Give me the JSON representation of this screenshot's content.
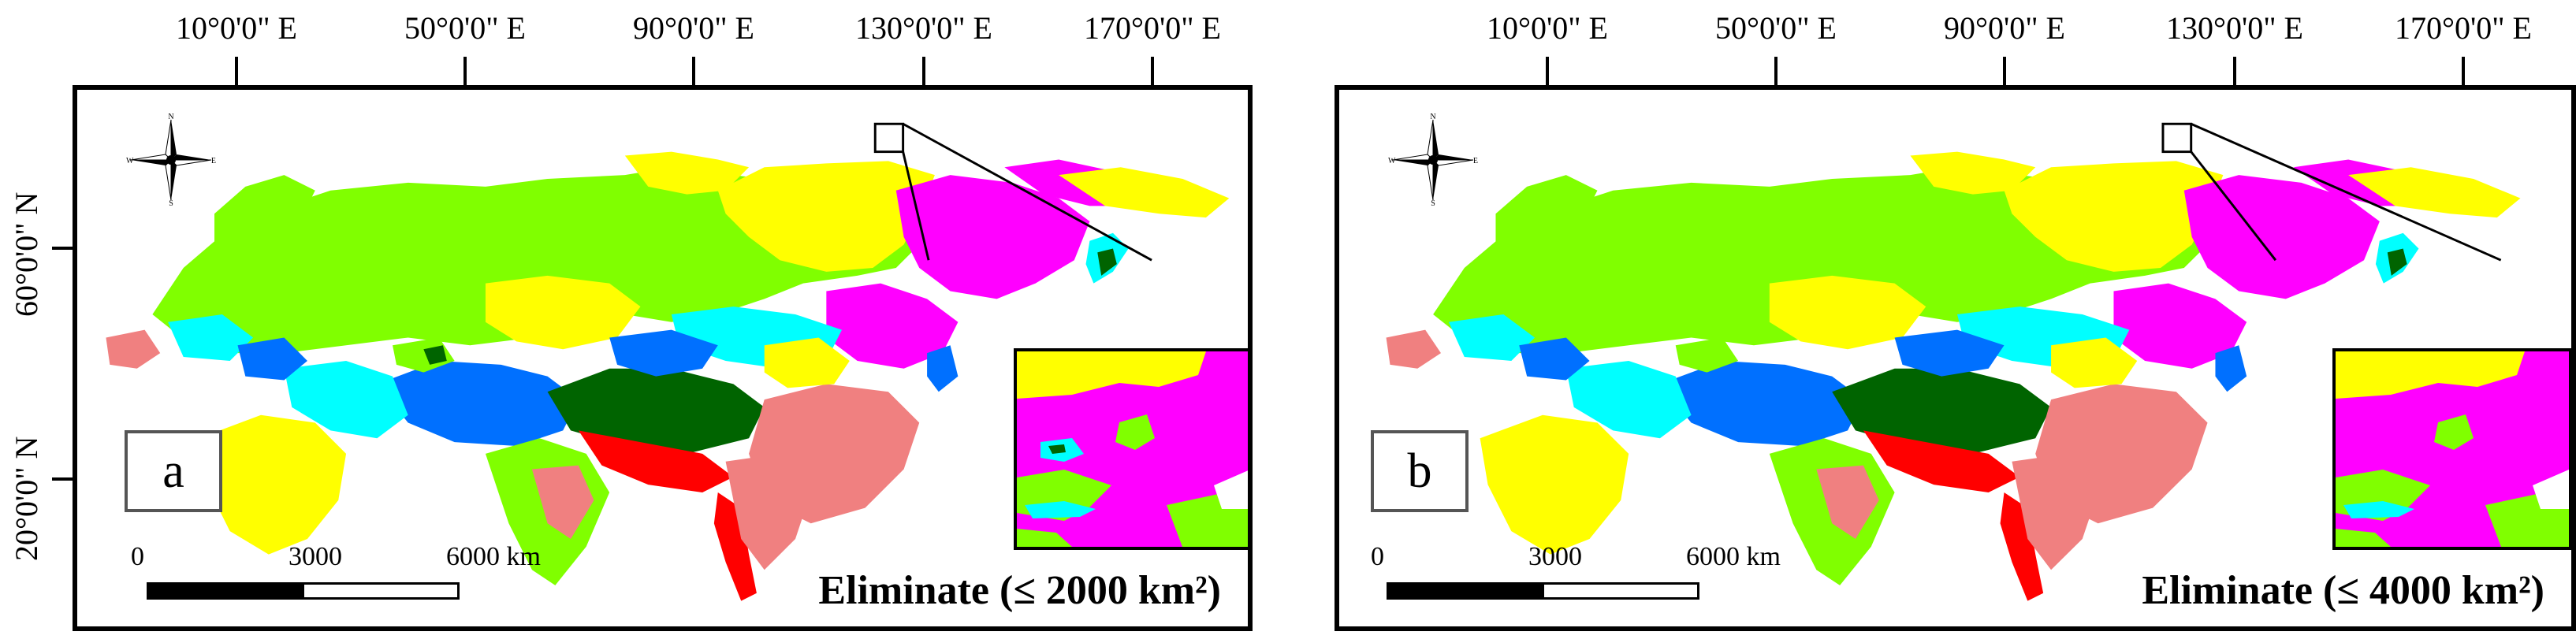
{
  "longitude_labels": [
    "10°0'0\" E",
    "50°0'0\" E",
    "90°0'0\" E",
    "130°0'0\" E",
    "170°0'0\" E"
  ],
  "latitude_labels": [
    "60°0'0\" N",
    "20°0'0\" N"
  ],
  "north_arrow": {
    "letters": [
      "N",
      "E",
      "S",
      "W"
    ]
  },
  "scale_bar": {
    "labels": [
      "0",
      "3000",
      "6000 km"
    ]
  },
  "colors": {
    "yellow": "#ffff00",
    "lime": "#80ff00",
    "magenta": "#ff00ff",
    "cyan": "#00ffff",
    "blue": "#0070ff",
    "dark_green": "#006400",
    "salmon": "#f08080",
    "red": "#ff0000"
  },
  "panels": [
    {
      "letter": "a",
      "caption": "Eliminate (≤ 2000 km²)"
    },
    {
      "letter": "b",
      "caption": "Eliminate (≤ 4000 km²)"
    }
  ]
}
